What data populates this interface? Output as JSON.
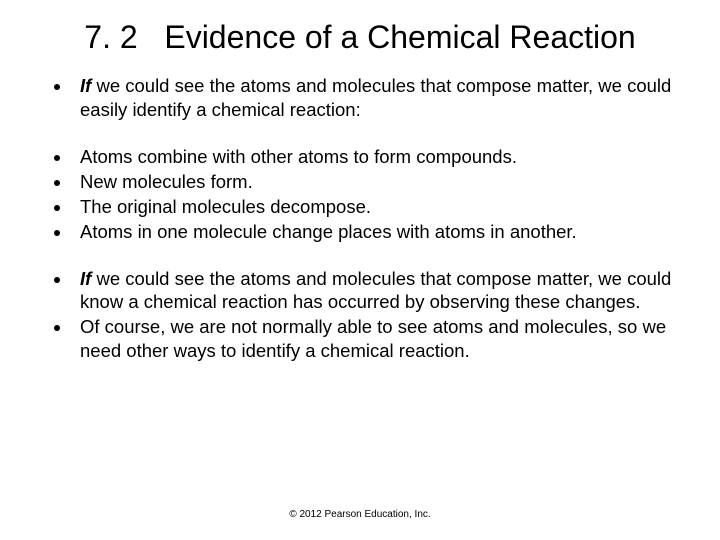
{
  "colors": {
    "background": "#ffffff",
    "text": "#000000"
  },
  "title": {
    "number": "7. 2",
    "text": "Evidence of a Chemical Reaction",
    "fontsize": 32,
    "align": "center"
  },
  "body_fontsize": 18.5,
  "group1": {
    "b1": {
      "emph": "If",
      "rest": " we could see the atoms and molecules that compose matter, we could easily identify a chemical reaction:"
    }
  },
  "group2": {
    "b1": "Atoms combine with other atoms to form compounds.",
    "b2": "New molecules form.",
    "b3": "The original molecules decompose.",
    "b4": "Atoms in one molecule change places with atoms in another."
  },
  "group3": {
    "b1": {
      "emph": "If",
      "rest": " we could see the atoms and molecules that compose matter, we could know a chemical reaction has occurred by observing these changes."
    },
    "b2": "Of course, we are not normally able to see atoms and molecules, so we need other ways to identify a chemical reaction."
  },
  "footer": "© 2012 Pearson Education, Inc."
}
